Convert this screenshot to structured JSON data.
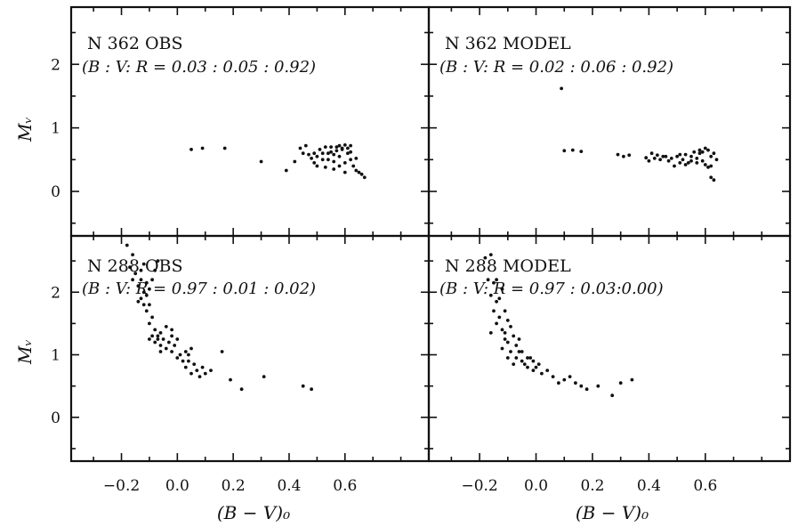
{
  "chart_data": [
    {
      "type": "scatter",
      "panel": "top-left",
      "title": "N 362  OBS",
      "ratio_text": "(B : V: R = 0.03 : 0.05 : 0.92)",
      "xlabel": "",
      "ylabel": "Mᵥ",
      "xlim": [
        -0.38,
        0.9
      ],
      "ylim": [
        2.9,
        -0.7
      ],
      "grid": false,
      "xticks": [],
      "yticks": [
        "0",
        "1",
        "2"
      ],
      "points": [
        [
          0.05,
          0.66
        ],
        [
          0.09,
          0.68
        ],
        [
          0.17,
          0.68
        ],
        [
          0.3,
          0.47
        ],
        [
          0.39,
          0.33
        ],
        [
          0.42,
          0.47
        ],
        [
          0.44,
          0.68
        ],
        [
          0.46,
          0.72
        ],
        [
          0.48,
          0.52
        ],
        [
          0.49,
          0.6
        ],
        [
          0.5,
          0.4
        ],
        [
          0.51,
          0.66
        ],
        [
          0.52,
          0.5
        ],
        [
          0.53,
          0.38
        ],
        [
          0.54,
          0.6
        ],
        [
          0.55,
          0.7
        ],
        [
          0.56,
          0.47
        ],
        [
          0.57,
          0.64
        ],
        [
          0.58,
          0.55
        ],
        [
          0.59,
          0.68
        ],
        [
          0.6,
          0.45
        ],
        [
          0.61,
          0.6
        ],
        [
          0.62,
          0.5
        ],
        [
          0.63,
          0.4
        ],
        [
          0.64,
          0.33
        ],
        [
          0.65,
          0.3
        ],
        [
          0.66,
          0.27
        ],
        [
          0.67,
          0.22
        ],
        [
          0.57,
          0.7
        ],
        [
          0.58,
          0.72
        ],
        [
          0.59,
          0.66
        ],
        [
          0.6,
          0.73
        ],
        [
          0.55,
          0.62
        ],
        [
          0.56,
          0.58
        ],
        [
          0.54,
          0.5
        ],
        [
          0.53,
          0.7
        ],
        [
          0.52,
          0.6
        ],
        [
          0.5,
          0.55
        ],
        [
          0.49,
          0.45
        ],
        [
          0.47,
          0.58
        ],
        [
          0.45,
          0.6
        ],
        [
          0.61,
          0.68
        ],
        [
          0.62,
          0.62
        ],
        [
          0.58,
          0.4
        ],
        [
          0.56,
          0.35
        ],
        [
          0.6,
          0.3
        ],
        [
          0.62,
          0.72
        ],
        [
          0.64,
          0.52
        ]
      ]
    },
    {
      "type": "scatter",
      "panel": "top-right",
      "title": "N 362  MODEL",
      "ratio_text": "(B : V: R = 0.02 : 0.06 : 0.92)",
      "xlabel": "",
      "ylabel": "",
      "xlim": [
        -0.38,
        0.9
      ],
      "ylim": [
        2.9,
        -0.7
      ],
      "grid": false,
      "xticks": [],
      "yticks": [],
      "points": [
        [
          0.09,
          1.62
        ],
        [
          0.1,
          0.64
        ],
        [
          0.13,
          0.65
        ],
        [
          0.16,
          0.63
        ],
        [
          0.29,
          0.58
        ],
        [
          0.31,
          0.55
        ],
        [
          0.33,
          0.57
        ],
        [
          0.39,
          0.53
        ],
        [
          0.4,
          0.48
        ],
        [
          0.41,
          0.6
        ],
        [
          0.42,
          0.52
        ],
        [
          0.44,
          0.5
        ],
        [
          0.45,
          0.55
        ],
        [
          0.47,
          0.48
        ],
        [
          0.48,
          0.52
        ],
        [
          0.49,
          0.4
        ],
        [
          0.5,
          0.55
        ],
        [
          0.51,
          0.45
        ],
        [
          0.52,
          0.5
        ],
        [
          0.53,
          0.58
        ],
        [
          0.54,
          0.45
        ],
        [
          0.55,
          0.55
        ],
        [
          0.56,
          0.62
        ],
        [
          0.57,
          0.52
        ],
        [
          0.58,
          0.6
        ],
        [
          0.59,
          0.48
        ],
        [
          0.6,
          0.42
        ],
        [
          0.61,
          0.38
        ],
        [
          0.62,
          0.55
        ],
        [
          0.63,
          0.6
        ],
        [
          0.64,
          0.5
        ],
        [
          0.62,
          0.22
        ],
        [
          0.63,
          0.18
        ],
        [
          0.6,
          0.68
        ],
        [
          0.58,
          0.65
        ],
        [
          0.55,
          0.48
        ],
        [
          0.51,
          0.58
        ],
        [
          0.46,
          0.55
        ],
        [
          0.43,
          0.57
        ],
        [
          0.59,
          0.62
        ],
        [
          0.61,
          0.65
        ],
        [
          0.57,
          0.45
        ],
        [
          0.53,
          0.42
        ],
        [
          0.62,
          0.4
        ]
      ]
    },
    {
      "type": "scatter",
      "panel": "bottom-left",
      "title": "N 288  OBS",
      "ratio_text": "(B : V: R = 0.97 : 0.01 : 0.02)",
      "xlabel": "(B − V)₀",
      "ylabel": "Mᵥ",
      "xlim": [
        -0.38,
        0.9
      ],
      "ylim": [
        2.9,
        -0.7
      ],
      "grid": false,
      "xticks": [
        "−0.2",
        "0.0",
        "0.2",
        "0.4",
        "0.6"
      ],
      "yticks": [
        "0",
        "1",
        "2"
      ],
      "points": [
        [
          -0.18,
          2.75
        ],
        [
          -0.16,
          2.6
        ],
        [
          -0.17,
          2.4
        ],
        [
          -0.15,
          2.3
        ],
        [
          -0.16,
          2.2
        ],
        [
          -0.14,
          2.1
        ],
        [
          -0.13,
          2.35
        ],
        [
          -0.12,
          2.0
        ],
        [
          -0.13,
          1.9
        ],
        [
          -0.12,
          1.8
        ],
        [
          -0.11,
          1.7
        ],
        [
          -0.1,
          1.8
        ],
        [
          -0.11,
          1.95
        ],
        [
          -0.1,
          2.05
        ],
        [
          -0.09,
          2.2
        ],
        [
          -0.08,
          2.35
        ],
        [
          -0.07,
          2.5
        ],
        [
          -0.09,
          1.6
        ],
        [
          -0.1,
          1.5
        ],
        [
          -0.08,
          1.4
        ],
        [
          -0.09,
          1.3
        ],
        [
          -0.1,
          1.25
        ],
        [
          -0.08,
          1.2
        ],
        [
          -0.07,
          1.3
        ],
        [
          -0.06,
          1.15
        ],
        [
          -0.05,
          1.25
        ],
        [
          -0.06,
          1.35
        ],
        [
          -0.04,
          1.1
        ],
        [
          -0.03,
          1.2
        ],
        [
          -0.02,
          1.05
        ],
        [
          -0.01,
          1.15
        ],
        [
          0.0,
          1.25
        ],
        [
          -0.02,
          1.4
        ],
        [
          -0.04,
          1.45
        ],
        [
          0.01,
          1.0
        ],
        [
          0.02,
          0.9
        ],
        [
          0.03,
          0.8
        ],
        [
          0.04,
          1.0
        ],
        [
          0.05,
          0.7
        ],
        [
          0.06,
          0.85
        ],
        [
          0.07,
          0.75
        ],
        [
          0.08,
          0.65
        ],
        [
          0.09,
          0.8
        ],
        [
          0.1,
          0.7
        ],
        [
          0.12,
          0.75
        ],
        [
          0.05,
          1.1
        ],
        [
          0.03,
          1.05
        ],
        [
          0.16,
          1.05
        ],
        [
          0.19,
          0.6
        ],
        [
          0.23,
          0.45
        ],
        [
          0.31,
          0.65
        ],
        [
          0.45,
          0.5
        ],
        [
          0.48,
          0.45
        ],
        [
          -0.13,
          2.2
        ],
        [
          -0.14,
          1.85
        ],
        [
          -0.12,
          2.45
        ],
        [
          -0.11,
          2.15
        ],
        [
          -0.07,
          1.25
        ],
        [
          -0.06,
          1.05
        ],
        [
          -0.02,
          1.3
        ],
        [
          0.0,
          0.95
        ],
        [
          0.04,
          0.9
        ]
      ]
    },
    {
      "type": "scatter",
      "panel": "bottom-right",
      "title": "N 288  MODEL",
      "ratio_text": "(B : V: R = 0.97 : 0.03:0.00)",
      "xlabel": "(B − V)₀",
      "ylabel": "",
      "xlim": [
        -0.38,
        0.9
      ],
      "ylim": [
        2.9,
        -0.7
      ],
      "grid": false,
      "xticks": [
        "−0.2",
        "0.0",
        "0.2",
        "0.4",
        "0.6"
      ],
      "yticks": [],
      "points": [
        [
          -0.18,
          2.55
        ],
        [
          -0.16,
          2.6
        ],
        [
          -0.17,
          2.2
        ],
        [
          -0.15,
          2.15
        ],
        [
          -0.16,
          1.95
        ],
        [
          -0.14,
          1.85
        ],
        [
          -0.15,
          1.7
        ],
        [
          -0.13,
          1.6
        ],
        [
          -0.14,
          1.5
        ],
        [
          -0.12,
          1.4
        ],
        [
          -0.16,
          1.35
        ],
        [
          -0.11,
          1.25
        ],
        [
          -0.12,
          1.1
        ],
        [
          -0.1,
          1.2
        ],
        [
          -0.09,
          1.05
        ],
        [
          -0.1,
          0.95
        ],
        [
          -0.08,
          0.85
        ],
        [
          -0.07,
          0.95
        ],
        [
          -0.06,
          1.05
        ],
        [
          -0.05,
          0.9
        ],
        [
          -0.04,
          0.85
        ],
        [
          -0.03,
          0.8
        ],
        [
          -0.02,
          0.95
        ],
        [
          -0.01,
          0.75
        ],
        [
          0.0,
          0.8
        ],
        [
          0.02,
          0.7
        ],
        [
          0.04,
          0.75
        ],
        [
          0.06,
          0.65
        ],
        [
          0.08,
          0.55
        ],
        [
          0.1,
          0.6
        ],
        [
          0.12,
          0.65
        ],
        [
          0.14,
          0.55
        ],
        [
          0.16,
          0.5
        ],
        [
          0.18,
          0.45
        ],
        [
          0.22,
          0.5
        ],
        [
          0.27,
          0.35
        ],
        [
          0.3,
          0.55
        ],
        [
          0.34,
          0.6
        ],
        [
          -0.13,
          1.9
        ],
        [
          -0.11,
          1.7
        ],
        [
          -0.09,
          1.45
        ],
        [
          -0.08,
          1.3
        ],
        [
          -0.12,
          2.05
        ],
        [
          -0.14,
          2.2
        ],
        [
          -0.07,
          1.15
        ],
        [
          -0.05,
          1.05
        ],
        [
          -0.03,
          0.95
        ],
        [
          -0.01,
          0.9
        ],
        [
          0.01,
          0.85
        ],
        [
          -0.1,
          1.55
        ],
        [
          -0.11,
          1.35
        ],
        [
          -0.06,
          1.25
        ]
      ]
    }
  ]
}
